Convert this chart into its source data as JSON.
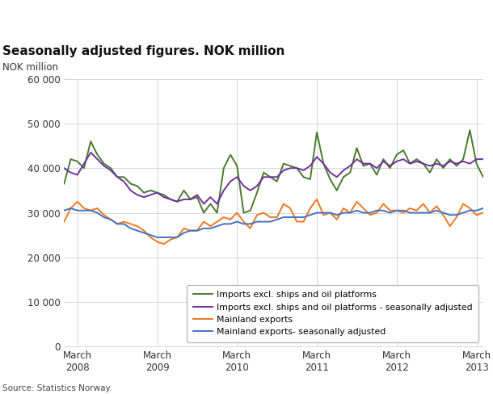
{
  "title": "Seasonally adjusted figures. NOK million",
  "ylabel": "NOK million",
  "source": "Source: Statistics Norway.",
  "ylim": [
    0,
    60000
  ],
  "yticks": [
    0,
    10000,
    20000,
    30000,
    40000,
    50000,
    60000
  ],
  "ytick_labels": [
    "0",
    "10 000",
    "20 000",
    "30 000",
    "40 000",
    "50 000",
    "60 000"
  ],
  "xtick_labels": [
    "March\n2008",
    "March\n2009",
    "March\n2010",
    "March\n2011",
    "March\n2012",
    "March\n2013"
  ],
  "colors": {
    "imports_raw": "#4a7a2e",
    "imports_sa": "#7030a0",
    "exports_raw": "#f07820",
    "exports_sa": "#4472c4"
  },
  "legend_labels": [
    "Imports excl. ships and oil platforms",
    "Imports excl. ships and oil platforms - seasonally adjusted",
    "Mainland exports",
    "Mainland exports- seasonally adjusted"
  ],
  "imports_raw": [
    36500,
    42000,
    41500,
    40000,
    46000,
    43000,
    41000,
    40000,
    38000,
    38000,
    36500,
    36000,
    34500,
    35000,
    34500,
    34000,
    33000,
    32500,
    35000,
    33000,
    33500,
    30000,
    32000,
    30000,
    40000,
    43000,
    40500,
    30000,
    30500,
    34500,
    39000,
    38000,
    37000,
    41000,
    40500,
    40000,
    38000,
    37500,
    48000,
    41000,
    37500,
    35000,
    38000,
    39000,
    44500,
    40500,
    41000,
    38500,
    42000,
    40000,
    43000,
    44000,
    41000,
    42000,
    41000,
    39000,
    42000,
    40000,
    42000,
    40500,
    42000,
    48500,
    41000,
    38000
  ],
  "imports_sa": [
    40000,
    39000,
    38500,
    41000,
    43500,
    42000,
    40500,
    39500,
    38000,
    37000,
    35000,
    34000,
    33500,
    34000,
    34500,
    33500,
    33000,
    32500,
    33000,
    33000,
    34000,
    32000,
    33500,
    32000,
    35000,
    37000,
    38000,
    36000,
    35000,
    36000,
    38000,
    38000,
    38000,
    39500,
    40000,
    40000,
    39500,
    40500,
    42500,
    41000,
    39000,
    38000,
    39500,
    40500,
    42000,
    41000,
    41000,
    40000,
    41500,
    40500,
    41500,
    42000,
    41000,
    41500,
    41000,
    40500,
    41000,
    40500,
    41500,
    41000,
    41500,
    41000,
    42000,
    42000
  ],
  "exports_raw": [
    28000,
    31000,
    32500,
    31000,
    30500,
    31000,
    29500,
    28500,
    27500,
    28000,
    27500,
    27000,
    26000,
    24500,
    23500,
    23000,
    24000,
    24500,
    26500,
    26000,
    26000,
    28000,
    27000,
    28000,
    29000,
    28500,
    30000,
    28000,
    26500,
    29500,
    30000,
    29000,
    29000,
    32000,
    31000,
    28000,
    28000,
    31000,
    33000,
    29500,
    30000,
    28500,
    31000,
    30000,
    32500,
    31000,
    29500,
    30000,
    32000,
    30500,
    30500,
    30000,
    31000,
    30500,
    32000,
    30000,
    31500,
    29500,
    27000,
    29000,
    32000,
    31000,
    29500,
    30000
  ],
  "exports_sa": [
    30500,
    31000,
    30500,
    30500,
    30500,
    30000,
    29000,
    28500,
    27500,
    27500,
    26500,
    26000,
    25500,
    25000,
    24500,
    24500,
    24500,
    24500,
    25500,
    26000,
    26000,
    26500,
    26500,
    27000,
    27500,
    27500,
    28000,
    27500,
    27500,
    28000,
    28000,
    28000,
    28500,
    29000,
    29000,
    29000,
    29000,
    29500,
    30000,
    30000,
    30000,
    29500,
    30000,
    30000,
    30500,
    30000,
    30000,
    30500,
    30500,
    30000,
    30500,
    30500,
    30000,
    30000,
    30000,
    30000,
    30500,
    30000,
    29500,
    29500,
    30000,
    30500,
    30500,
    31000
  ]
}
